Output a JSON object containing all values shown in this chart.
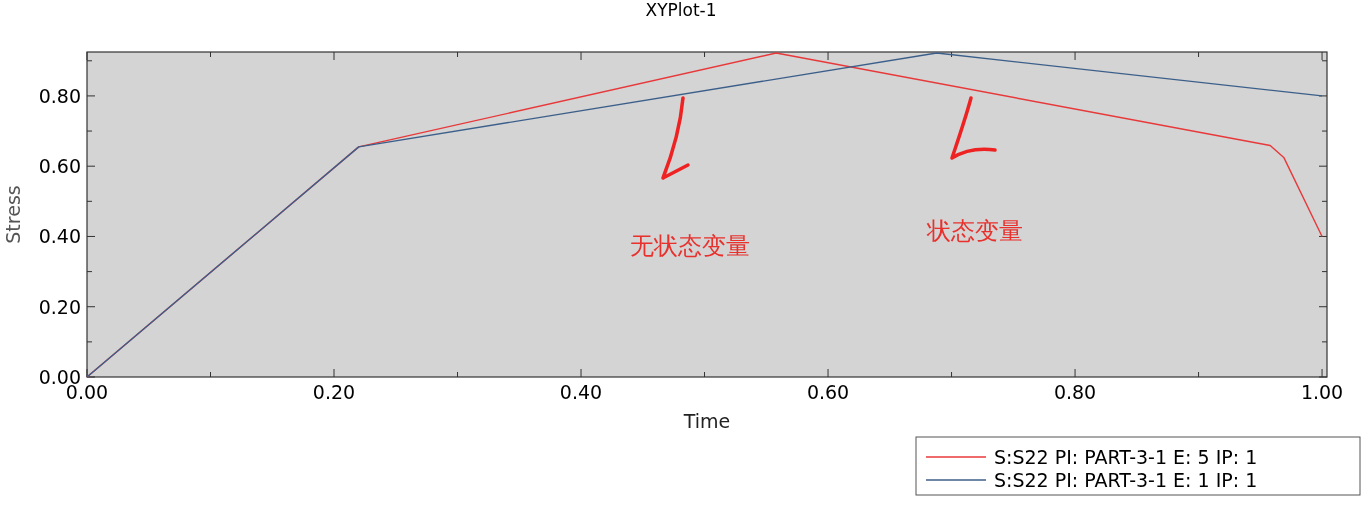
{
  "chart_data": {
    "type": "line",
    "title": "XYPlot-1",
    "xlabel": "Time",
    "ylabel": "Stress",
    "xlim": [
      0,
      1.004
    ],
    "ylim": [
      0,
      0.925
    ],
    "xticks": [
      {
        "value": 0,
        "label": "0.00"
      },
      {
        "value": 0.1,
        "label": null
      },
      {
        "value": 0.2,
        "label": "0.20"
      },
      {
        "value": 0.3,
        "label": null
      },
      {
        "value": 0.4,
        "label": "0.40"
      },
      {
        "value": 0.5,
        "label": null
      },
      {
        "value": 0.6,
        "label": "0.60"
      },
      {
        "value": 0.7,
        "label": null
      },
      {
        "value": 0.8,
        "label": "0.80"
      },
      {
        "value": 0.9,
        "label": null
      },
      {
        "value": 1.0,
        "label": "1.00"
      }
    ],
    "yticks": [
      {
        "value": 0,
        "label": "0.00"
      },
      {
        "value": 0.1,
        "label": null
      },
      {
        "value": 0.2,
        "label": "0.20"
      },
      {
        "value": 0.3,
        "label": null
      },
      {
        "value": 0.4,
        "label": "0.40"
      },
      {
        "value": 0.5,
        "label": null
      },
      {
        "value": 0.6,
        "label": "0.60"
      },
      {
        "value": 0.7,
        "label": null
      },
      {
        "value": 0.8,
        "label": "0.80"
      },
      {
        "value": 0.9,
        "label": null
      }
    ],
    "legend": "bottom right",
    "series": [
      {
        "name": "S:S22 PI: PART-3-1 E: 5 IP: 1",
        "color": "#e8383a",
        "x": [
          0,
          0.22,
          0.558,
          0.958,
          0.969,
          1.0
        ],
        "values": [
          0,
          0.655,
          0.922,
          0.659,
          0.625,
          0.4
        ]
      },
      {
        "name": "S:S22 PI: PART-3-1 E: 1 IP: 1",
        "color": "#3c5f8a",
        "x": [
          0,
          0.22,
          0.688,
          1.0
        ],
        "values": [
          0,
          0.655,
          0.922,
          0.8
        ]
      }
    ],
    "annotations": [
      "无状态变量",
      "状态变量"
    ]
  }
}
